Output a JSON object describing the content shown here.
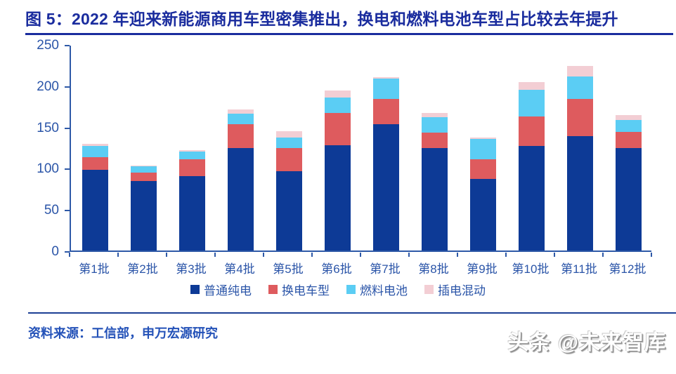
{
  "title": "图 5：2022 年迎来新能源商用车型密集推出，换电和燃料电池车型占比较去年提升",
  "source": "资料来源：工信部，申万宏源研究",
  "watermark": "头条 @未来智库",
  "colors": {
    "title_navy": "#1a2c9e",
    "axis_blue": "#2e59a7",
    "label_blue": "#2b55a8",
    "source_blue": "#2452b8",
    "series_pure_ev": "#0d3a96",
    "series_swap": "#de5b5e",
    "series_fuel_cell": "#5bcdf4",
    "series_phev": "#f3ced4"
  },
  "chart_data": {
    "type": "bar",
    "stacked": true,
    "title": "图 5：2022 年迎来新能源商用车型密集推出，换电和燃料电池车型占比较去年提升",
    "xlabel": "",
    "ylabel": "",
    "ylim": [
      0,
      250
    ],
    "yticks": [
      0,
      50,
      100,
      150,
      200,
      250
    ],
    "grid": false,
    "legend_position": "bottom",
    "categories": [
      "第1批",
      "第2批",
      "第3批",
      "第4批",
      "第5批",
      "第6批",
      "第7批",
      "第8批",
      "第9批",
      "第10批",
      "第11批",
      "第12批"
    ],
    "series": [
      {
        "name": "普通纯电",
        "color": "#0d3a96",
        "values": [
          98,
          84,
          90,
          124,
          96,
          128,
          153,
          124,
          87,
          127,
          139,
          124
        ]
      },
      {
        "name": "换电车型",
        "color": "#de5b5e",
        "values": [
          15,
          10,
          21,
          29,
          28,
          39,
          31,
          19,
          24,
          35,
          45,
          20
        ]
      },
      {
        "name": "燃料电池",
        "color": "#5bcdf4",
        "values": [
          14,
          8,
          9,
          13,
          13,
          18,
          24,
          19,
          24,
          33,
          27,
          14
        ]
      },
      {
        "name": "插电混动",
        "color": "#f3ced4",
        "values": [
          2,
          1,
          2,
          5,
          8,
          9,
          2,
          5,
          2,
          9,
          13,
          6
        ]
      }
    ]
  }
}
